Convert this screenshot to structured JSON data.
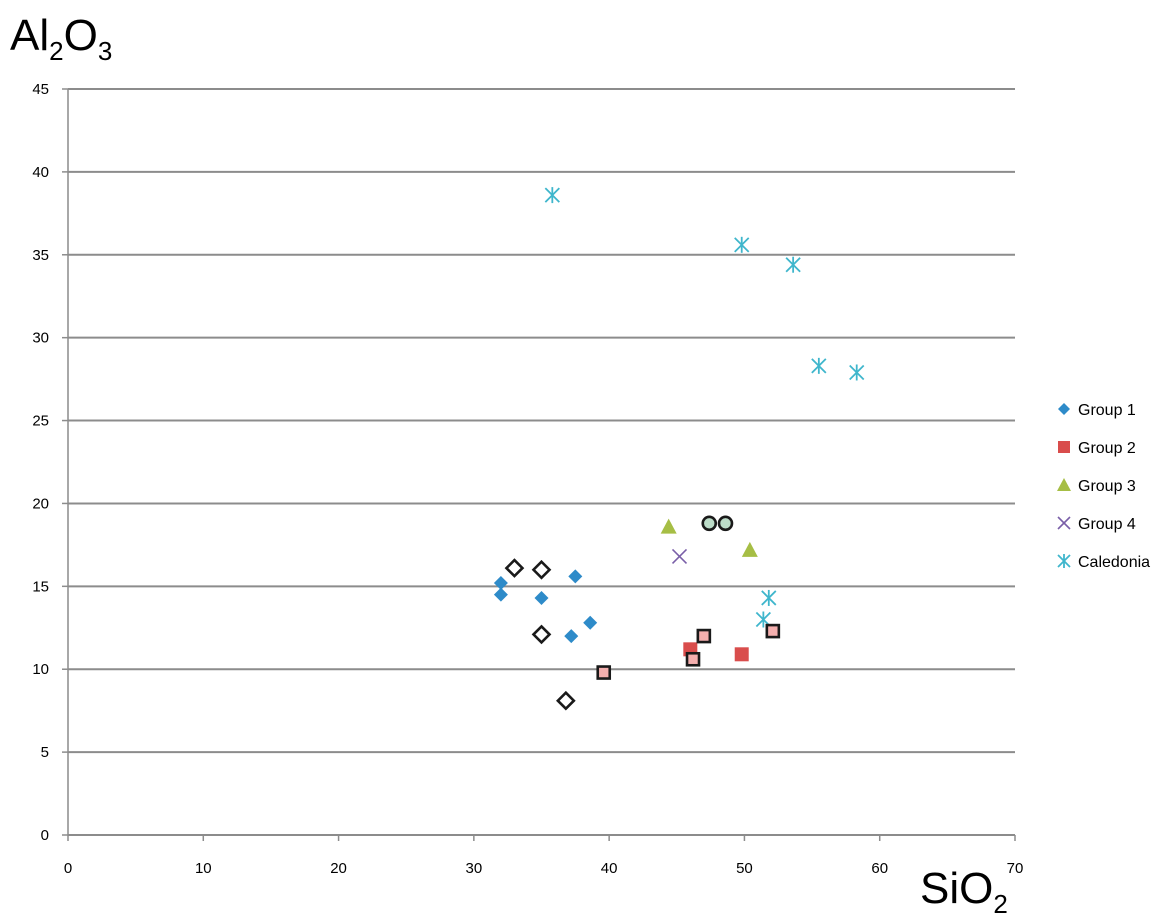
{
  "chart_data": {
    "type": "scatter",
    "title": "",
    "xlabel": {
      "main": "SiO",
      "sub": "2"
    },
    "ylabel": {
      "main1": "Al",
      "sub1": "2",
      "main2": "O",
      "sub2": "3"
    },
    "xlim": [
      0,
      70
    ],
    "ylim": [
      0,
      45
    ],
    "x_ticks": [
      0,
      10,
      20,
      30,
      40,
      50,
      60,
      70
    ],
    "y_ticks": [
      0,
      5,
      10,
      15,
      20,
      25,
      30,
      35,
      40,
      45
    ],
    "grid": "horizontal",
    "legend_position": "right",
    "series": [
      {
        "name": "Group 1",
        "marker": "diamond",
        "color": "#2E8BC9",
        "points": [
          [
            32.0,
            15.2
          ],
          [
            32.0,
            14.5
          ],
          [
            35.0,
            14.3
          ],
          [
            37.5,
            15.6
          ],
          [
            38.6,
            12.8
          ],
          [
            37.2,
            12.0
          ]
        ]
      },
      {
        "name": "Group 2",
        "marker": "square",
        "color": "#D94D4C",
        "points": [
          [
            46.0,
            11.2
          ],
          [
            49.8,
            10.9
          ]
        ]
      },
      {
        "name": "Group 3",
        "marker": "triangle",
        "color": "#A6BE45",
        "points": [
          [
            44.4,
            18.6
          ],
          [
            50.4,
            17.2
          ]
        ]
      },
      {
        "name": "Group 4",
        "marker": "x",
        "color": "#7A5FA8",
        "points": [
          [
            45.2,
            16.8
          ]
        ]
      },
      {
        "name": "Caledonia",
        "marker": "asterisk",
        "color": "#3FB6CC",
        "points": [
          [
            35.8,
            38.6
          ],
          [
            49.8,
            35.6
          ],
          [
            53.6,
            34.4
          ],
          [
            55.5,
            28.3
          ],
          [
            58.3,
            27.9
          ],
          [
            51.8,
            14.3
          ],
          [
            51.4,
            13.0
          ]
        ]
      }
    ],
    "extra_markers": [
      {
        "marker": "open-diamond",
        "stroke": "#1a1a1a",
        "fill": "#ffffff",
        "points": [
          [
            33.0,
            16.1
          ],
          [
            35.0,
            16.0
          ],
          [
            35.0,
            12.1
          ],
          [
            36.8,
            8.1
          ]
        ]
      },
      {
        "marker": "outlined-square",
        "stroke": "#1a1a1a",
        "fill": "#F4AFAE",
        "points": [
          [
            39.6,
            9.8
          ],
          [
            46.2,
            10.6
          ],
          [
            47.0,
            12.0
          ],
          [
            52.1,
            12.3
          ]
        ]
      },
      {
        "marker": "outlined-circle",
        "stroke": "#1a1a1a",
        "fill": "#BCDCC8",
        "points": [
          [
            47.4,
            18.8
          ],
          [
            48.6,
            18.8
          ]
        ]
      }
    ]
  }
}
